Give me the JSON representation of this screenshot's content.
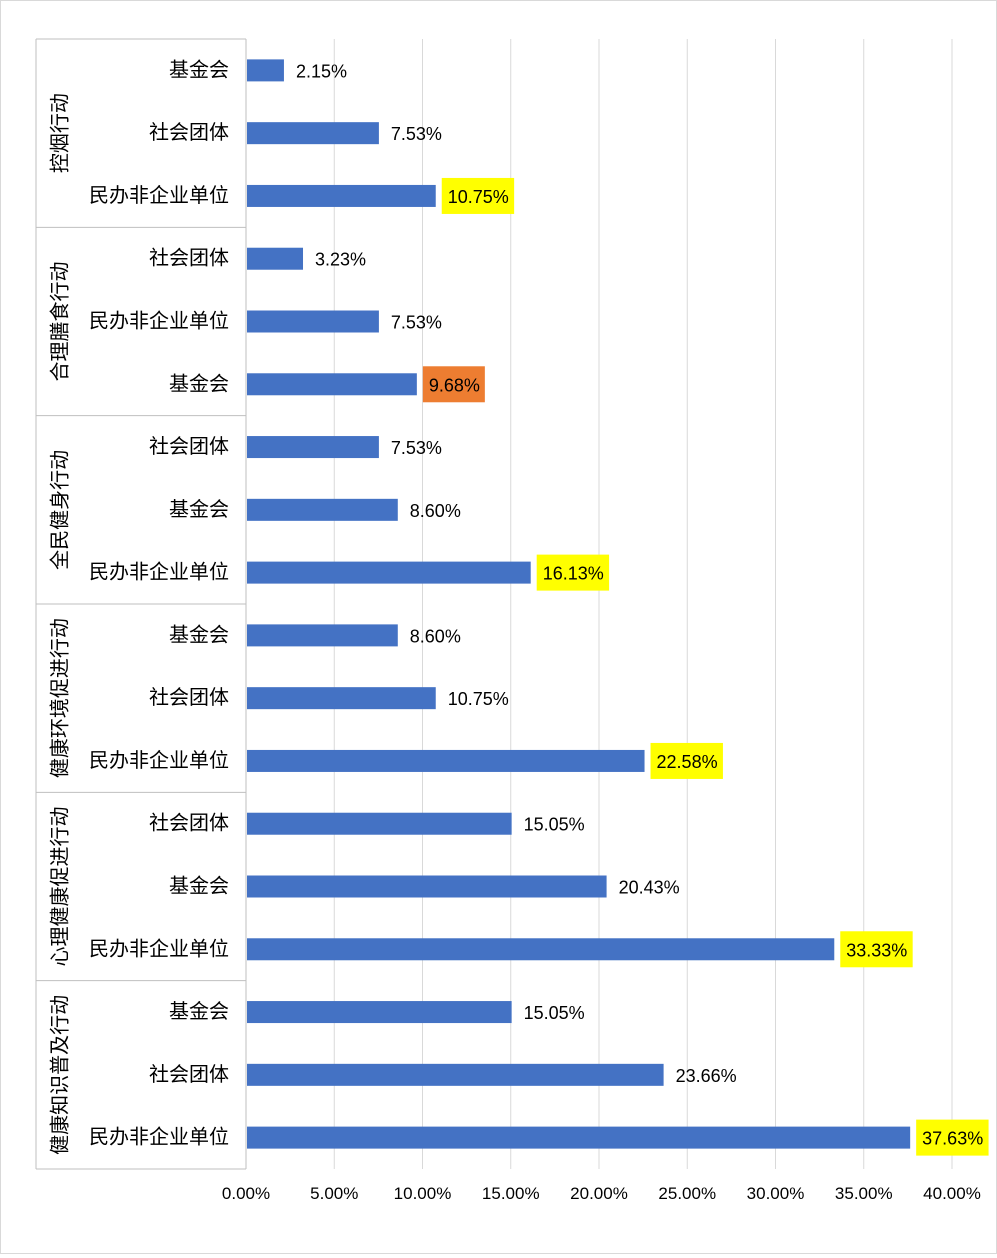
{
  "chart_data": {
    "type": "bar",
    "orientation": "horizontal",
    "xlim": [
      0,
      40
    ],
    "x_ticks": [
      "0.00%",
      "5.00%",
      "10.00%",
      "15.00%",
      "20.00%",
      "25.00%",
      "30.00%",
      "35.00%",
      "40.00%"
    ],
    "grid": "vertical",
    "bar_color": "#4472C4",
    "highlight_colors": {
      "yellow": "#FFFF00",
      "orange": "#ED7D31"
    },
    "groups": [
      {
        "name": "控烟行动",
        "bars": [
          {
            "label": "基金会",
            "value": 2.15,
            "value_label": "2.15%",
            "highlight": null
          },
          {
            "label": "社会团体",
            "value": 7.53,
            "value_label": "7.53%",
            "highlight": null
          },
          {
            "label": "民办非企业单位",
            "value": 10.75,
            "value_label": "10.75%",
            "highlight": "yellow"
          }
        ]
      },
      {
        "name": "合理膳食行动",
        "bars": [
          {
            "label": "社会团体",
            "value": 3.23,
            "value_label": "3.23%",
            "highlight": null
          },
          {
            "label": "民办非企业单位",
            "value": 7.53,
            "value_label": "7.53%",
            "highlight": null
          },
          {
            "label": "基金会",
            "value": 9.68,
            "value_label": "9.68%",
            "highlight": "orange"
          }
        ]
      },
      {
        "name": "全民健身行动",
        "bars": [
          {
            "label": "社会团体",
            "value": 7.53,
            "value_label": "7.53%",
            "highlight": null
          },
          {
            "label": "基金会",
            "value": 8.6,
            "value_label": "8.60%",
            "highlight": null
          },
          {
            "label": "民办非企业单位",
            "value": 16.13,
            "value_label": "16.13%",
            "highlight": "yellow"
          }
        ]
      },
      {
        "name": "健康环境促进行动",
        "bars": [
          {
            "label": "基金会",
            "value": 8.6,
            "value_label": "8.60%",
            "highlight": null
          },
          {
            "label": "社会团体",
            "value": 10.75,
            "value_label": "10.75%",
            "highlight": null
          },
          {
            "label": "民办非企业单位",
            "value": 22.58,
            "value_label": "22.58%",
            "highlight": "yellow"
          }
        ]
      },
      {
        "name": "心理健康促进行动",
        "bars": [
          {
            "label": "社会团体",
            "value": 15.05,
            "value_label": "15.05%",
            "highlight": null
          },
          {
            "label": "基金会",
            "value": 20.43,
            "value_label": "20.43%",
            "highlight": null
          },
          {
            "label": "民办非企业单位",
            "value": 33.33,
            "value_label": "33.33%",
            "highlight": "yellow"
          }
        ]
      },
      {
        "name": "健康知识普及行动",
        "bars": [
          {
            "label": "基金会",
            "value": 15.05,
            "value_label": "15.05%",
            "highlight": null
          },
          {
            "label": "社会团体",
            "value": 23.66,
            "value_label": "23.66%",
            "highlight": null
          },
          {
            "label": "民办非企业单位",
            "value": 37.63,
            "value_label": "37.63%",
            "highlight": "yellow"
          }
        ]
      }
    ]
  }
}
